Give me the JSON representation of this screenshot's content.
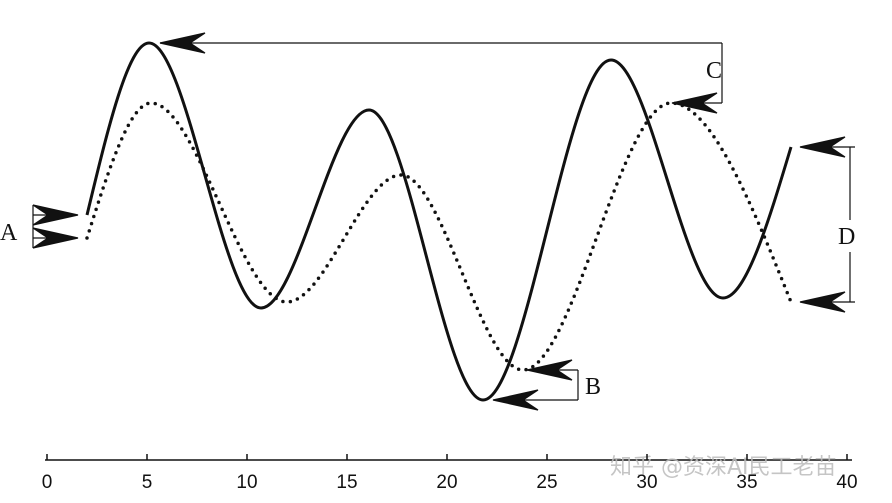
{
  "chart_data": {
    "type": "line",
    "xlim": [
      0,
      40
    ],
    "xticks": [
      0,
      5,
      10,
      15,
      20,
      25,
      30,
      35,
      40
    ],
    "ylim": [
      0,
      21
    ],
    "series": [
      {
        "style": "solid",
        "color": "#111111",
        "x": [
          2,
          5.1,
          10.7,
          16.1,
          21.8,
          28.2,
          33.8,
          37.2
        ],
        "values": [
          12.25,
          20.85,
          7.6,
          17.5,
          3,
          20,
          8.1,
          15.65
        ]
      },
      {
        "style": "dotted",
        "color": "#111111",
        "x": [
          2,
          5.2,
          12,
          17.7,
          23.8,
          31.2,
          37.2
        ],
        "values": [
          11.1,
          17.85,
          7.9,
          14.25,
          4.5,
          17.85,
          7.9
        ]
      }
    ],
    "annotations": [
      "A",
      "B",
      "C",
      "D"
    ],
    "watermark": "知乎 @资深AI民工老苗"
  }
}
